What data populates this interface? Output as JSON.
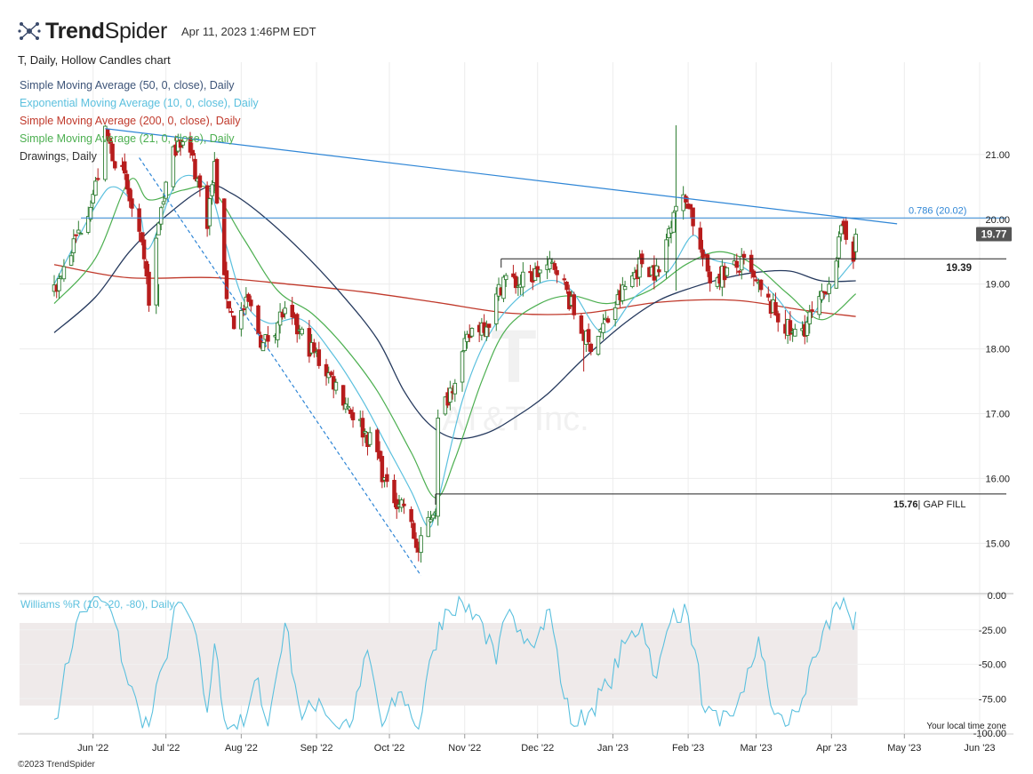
{
  "header": {
    "brand_prefix": "Trend",
    "brand_suffix": "Spider",
    "timestamp": "Apr 11, 2023 1:46PM EDT",
    "subtitle": "T, Daily, Hollow Candles chart"
  },
  "legend": [
    {
      "label": "Simple Moving Average (50, 0, close), Daily",
      "color": "#3d5478"
    },
    {
      "label": "Exponential Moving Average (10, 0, close), Daily",
      "color": "#5bc0de"
    },
    {
      "label": "Simple Moving Average (200, 0, close), Daily",
      "color": "#c0392b"
    },
    {
      "label": "Simple Moving Average (21, 0, close), Daily",
      "color": "#4caf50"
    },
    {
      "label": "Drawings, Daily",
      "color": "#333333"
    }
  ],
  "watermark": {
    "symbol": "T",
    "name": "AT&T Inc."
  },
  "footer": {
    "copyright": "©2023 TrendSpider",
    "timezone": "Your local time zone"
  },
  "chart_data": {
    "type": "candlestick",
    "ticker": "T",
    "interval": "Daily",
    "start": "2022-05-16",
    "end": "2023-04-11",
    "x_tick_labels": [
      "Jun '22",
      "Jul '22",
      "Aug '22",
      "Sep '22",
      "Oct '22",
      "Nov '22",
      "Dec '22",
      "Jan '23",
      "Feb '23",
      "Mar '23",
      "Apr '23",
      "May '23",
      "Jun '23"
    ],
    "y_tick_labels": [
      "15.00",
      "16.00",
      "17.00",
      "18.00",
      "19.00",
      "20.00",
      "21.00"
    ],
    "ylim": [
      14.25,
      22.15
    ],
    "last_price": {
      "value": 19.77,
      "label": "19.77"
    },
    "price_path": [
      [
        "2022-05-16",
        18.9
      ],
      [
        "2022-05-25",
        19.7
      ],
      [
        "2022-06-02",
        20.5
      ],
      [
        "2022-06-06",
        21.3
      ],
      [
        "2022-06-14",
        20.6
      ],
      [
        "2022-06-21",
        19.5
      ],
      [
        "2022-06-24",
        18.8
      ],
      [
        "2022-06-29",
        20.2
      ],
      [
        "2022-07-06",
        21.3
      ],
      [
        "2022-07-12",
        20.9
      ],
      [
        "2022-07-18",
        20.0
      ],
      [
        "2022-07-21",
        20.8
      ],
      [
        "2022-07-25",
        19.0
      ],
      [
        "2022-07-29",
        18.4
      ],
      [
        "2022-08-04",
        18.7
      ],
      [
        "2022-08-10",
        18.05
      ],
      [
        "2022-08-18",
        18.55
      ],
      [
        "2022-08-26",
        18.2
      ],
      [
        "2022-09-08",
        17.5
      ],
      [
        "2022-09-16",
        17.0
      ],
      [
        "2022-09-26",
        16.4
      ],
      [
        "2022-09-30",
        15.8
      ],
      [
        "2022-10-07",
        15.6
      ],
      [
        "2022-10-13",
        14.85
      ],
      [
        "2022-10-17",
        15.35
      ],
      [
        "2022-10-20",
        15.6
      ],
      [
        "2022-10-21",
        16.85
      ],
      [
        "2022-10-28",
        17.6
      ],
      [
        "2022-11-04",
        18.3
      ],
      [
        "2022-11-11",
        18.45
      ],
      [
        "2022-11-17",
        19.1
      ],
      [
        "2022-11-23",
        19.0
      ],
      [
        "2022-12-02",
        19.2
      ],
      [
        "2022-12-09",
        19.3
      ],
      [
        "2022-12-16",
        18.55
      ],
      [
        "2022-12-22",
        18.05
      ],
      [
        "2022-12-30",
        18.45
      ],
      [
        "2023-01-06",
        18.95
      ],
      [
        "2023-01-13",
        19.35
      ],
      [
        "2023-01-20",
        19.15
      ],
      [
        "2023-01-26",
        20.2
      ],
      [
        "2023-02-01",
        20.3
      ],
      [
        "2023-02-06",
        19.5
      ],
      [
        "2023-02-10",
        19.1
      ],
      [
        "2023-02-17",
        19.2
      ],
      [
        "2023-02-24",
        19.3
      ],
      [
        "2023-03-03",
        18.85
      ],
      [
        "2023-03-10",
        18.5
      ],
      [
        "2023-03-16",
        18.2
      ],
      [
        "2023-03-21",
        18.35
      ],
      [
        "2023-03-28",
        18.75
      ],
      [
        "2023-04-03",
        19.45
      ],
      [
        "2023-04-06",
        19.9
      ],
      [
        "2023-04-10",
        19.5
      ],
      [
        "2023-04-11",
        19.77
      ]
    ],
    "wick_spikes": [
      {
        "date": "2023-01-27",
        "high": 21.45,
        "low": 18.9
      },
      {
        "date": "2022-06-28",
        "high": 19.0,
        "low": 18.65
      },
      {
        "date": "2022-12-20",
        "high": 18.3,
        "low": 17.65
      },
      {
        "date": "2023-03-13",
        "high": 18.6,
        "low": 18.15
      }
    ],
    "sma50": [
      [
        "2022-05-16",
        18.25
      ],
      [
        "2022-06-02",
        18.8
      ],
      [
        "2022-06-16",
        19.5
      ],
      [
        "2022-07-01",
        20.05
      ],
      [
        "2022-07-18",
        20.5
      ],
      [
        "2022-07-28",
        20.4
      ],
      [
        "2022-08-10",
        20.05
      ],
      [
        "2022-08-26",
        19.5
      ],
      [
        "2022-09-10",
        18.9
      ],
      [
        "2022-09-26",
        18.15
      ],
      [
        "2022-10-07",
        17.35
      ],
      [
        "2022-10-17",
        16.85
      ],
      [
        "2022-10-28",
        16.62
      ],
      [
        "2022-11-10",
        16.7
      ],
      [
        "2022-11-22",
        16.95
      ],
      [
        "2022-12-05",
        17.3
      ],
      [
        "2022-12-20",
        17.85
      ],
      [
        "2023-01-06",
        18.4
      ],
      [
        "2023-01-20",
        18.75
      ],
      [
        "2023-02-03",
        18.95
      ],
      [
        "2023-02-17",
        19.1
      ],
      [
        "2023-03-01",
        19.18
      ],
      [
        "2023-03-15",
        19.2
      ],
      [
        "2023-03-28",
        19.05
      ],
      [
        "2023-04-11",
        19.05
      ]
    ],
    "ema10": [
      [
        "2022-05-16",
        19.0
      ],
      [
        "2022-06-02",
        20.2
      ],
      [
        "2022-06-10",
        20.5
      ],
      [
        "2022-06-20",
        20.1
      ],
      [
        "2022-06-24",
        19.55
      ],
      [
        "2022-07-06",
        20.6
      ],
      [
        "2022-07-18",
        20.5
      ],
      [
        "2022-07-25",
        19.7
      ],
      [
        "2022-08-02",
        18.75
      ],
      [
        "2022-08-12",
        18.4
      ],
      [
        "2022-08-26",
        18.45
      ],
      [
        "2022-09-08",
        17.9
      ],
      [
        "2022-09-20",
        17.2
      ],
      [
        "2022-09-30",
        16.5
      ],
      [
        "2022-10-10",
        15.8
      ],
      [
        "2022-10-17",
        15.25
      ],
      [
        "2022-10-21",
        15.65
      ],
      [
        "2022-10-31",
        17.2
      ],
      [
        "2022-11-10",
        18.15
      ],
      [
        "2022-11-22",
        18.75
      ],
      [
        "2022-12-05",
        19.05
      ],
      [
        "2022-12-15",
        18.9
      ],
      [
        "2022-12-28",
        18.25
      ],
      [
        "2023-01-10",
        18.8
      ],
      [
        "2023-01-24",
        19.2
      ],
      [
        "2023-02-03",
        19.75
      ],
      [
        "2023-02-10",
        19.4
      ],
      [
        "2023-02-24",
        19.25
      ],
      [
        "2023-03-08",
        18.85
      ],
      [
        "2023-03-20",
        18.4
      ],
      [
        "2023-03-31",
        18.9
      ],
      [
        "2023-04-11",
        19.4
      ]
    ],
    "sma200": [
      [
        "2022-05-16",
        19.3
      ],
      [
        "2022-06-15",
        19.1
      ],
      [
        "2022-07-20",
        19.1
      ],
      [
        "2022-08-20",
        19.0
      ],
      [
        "2022-09-20",
        18.88
      ],
      [
        "2022-10-20",
        18.72
      ],
      [
        "2022-11-20",
        18.55
      ],
      [
        "2022-12-20",
        18.55
      ],
      [
        "2023-01-20",
        18.72
      ],
      [
        "2023-02-20",
        18.75
      ],
      [
        "2023-03-20",
        18.6
      ],
      [
        "2023-04-11",
        18.5
      ]
    ],
    "sma21": [
      [
        "2022-05-16",
        18.7
      ],
      [
        "2022-06-02",
        19.4
      ],
      [
        "2022-06-16",
        20.6
      ],
      [
        "2022-06-24",
        20.3
      ],
      [
        "2022-07-08",
        20.45
      ],
      [
        "2022-07-20",
        20.45
      ],
      [
        "2022-08-02",
        19.7
      ],
      [
        "2022-08-16",
        18.9
      ],
      [
        "2022-08-30",
        18.55
      ],
      [
        "2022-09-12",
        18.05
      ],
      [
        "2022-09-26",
        17.35
      ],
      [
        "2022-10-10",
        16.4
      ],
      [
        "2022-10-20",
        15.7
      ],
      [
        "2022-10-28",
        16.3
      ],
      [
        "2022-11-08",
        17.5
      ],
      [
        "2022-11-18",
        18.3
      ],
      [
        "2022-12-02",
        18.7
      ],
      [
        "2022-12-15",
        18.82
      ],
      [
        "2022-12-30",
        18.7
      ],
      [
        "2023-01-16",
        18.9
      ],
      [
        "2023-01-31",
        19.3
      ],
      [
        "2023-02-14",
        19.5
      ],
      [
        "2023-02-28",
        19.3
      ],
      [
        "2023-03-14",
        18.85
      ],
      [
        "2023-03-28",
        18.45
      ],
      [
        "2023-04-11",
        18.85
      ]
    ],
    "drawings": {
      "trendline_top": {
        "from": [
          "2022-06-06",
          21.4
        ],
        "to": [
          "2023-04-28",
          19.93
        ]
      },
      "trendline_dashed": {
        "from": [
          "2022-06-20",
          20.95
        ],
        "to": [
          "2022-10-14",
          14.5
        ]
      },
      "fib_line": {
        "y": 20.02,
        "label": "0.786 (20.02)",
        "from": "2022-05-27"
      },
      "resistance_line": {
        "y": 19.39,
        "label": "19.39",
        "from": "2022-11-16"
      },
      "gap_fill_line": {
        "y": 15.76,
        "value_label": "15.76",
        "text_label": "| GAP FILL",
        "from": "2022-10-20"
      }
    },
    "williams_r": {
      "label": "Williams %R (10, -20, -80), Daily",
      "params": [
        10,
        -20,
        -80
      ],
      "ylim": [
        -100,
        0
      ],
      "y_tick_labels": [
        "0.00",
        "-25.00",
        "-50.00",
        "-75.00",
        "-100.00"
      ],
      "band": [
        -80,
        -20
      ],
      "values": [
        [
          "2022-05-16",
          -90
        ],
        [
          "2022-05-19",
          -70
        ],
        [
          "2022-05-25",
          -20
        ],
        [
          "2022-05-31",
          -5
        ],
        [
          "2022-06-06",
          -5
        ],
        [
          "2022-06-10",
          -20
        ],
        [
          "2022-06-14",
          -55
        ],
        [
          "2022-06-20",
          -85
        ],
        [
          "2022-06-24",
          -95
        ],
        [
          "2022-06-30",
          -50
        ],
        [
          "2022-07-06",
          -5
        ],
        [
          "2022-07-12",
          -20
        ],
        [
          "2022-07-18",
          -85
        ],
        [
          "2022-07-21",
          -35
        ],
        [
          "2022-07-25",
          -90
        ],
        [
          "2022-08-02",
          -95
        ],
        [
          "2022-08-08",
          -60
        ],
        [
          "2022-08-12",
          -95
        ],
        [
          "2022-08-19",
          -20
        ],
        [
          "2022-08-26",
          -90
        ],
        [
          "2022-09-02",
          -75
        ],
        [
          "2022-09-09",
          -95
        ],
        [
          "2022-09-16",
          -90
        ],
        [
          "2022-09-22",
          -40
        ],
        [
          "2022-09-28",
          -95
        ],
        [
          "2022-10-06",
          -70
        ],
        [
          "2022-10-13",
          -97
        ],
        [
          "2022-10-19",
          -40
        ],
        [
          "2022-10-24",
          -10
        ],
        [
          "2022-10-31",
          -5
        ],
        [
          "2022-11-07",
          -15
        ],
        [
          "2022-11-14",
          -50
        ],
        [
          "2022-11-18",
          -15
        ],
        [
          "2022-11-24",
          -25
        ],
        [
          "2022-12-01",
          -30
        ],
        [
          "2022-12-06",
          -10
        ],
        [
          "2022-12-12",
          -75
        ],
        [
          "2022-12-16",
          -95
        ],
        [
          "2022-12-22",
          -85
        ],
        [
          "2022-12-30",
          -65
        ],
        [
          "2023-01-06",
          -35
        ],
        [
          "2023-01-13",
          -20
        ],
        [
          "2023-01-19",
          -60
        ],
        [
          "2023-01-26",
          -10
        ],
        [
          "2023-02-01",
          -15
        ],
        [
          "2023-02-08",
          -85
        ],
        [
          "2023-02-14",
          -95
        ],
        [
          "2023-02-21",
          -80
        ],
        [
          "2023-02-24",
          -70
        ],
        [
          "2023-03-02",
          -30
        ],
        [
          "2023-03-07",
          -80
        ],
        [
          "2023-03-13",
          -95
        ],
        [
          "2023-03-20",
          -75
        ],
        [
          "2023-03-27",
          -40
        ],
        [
          "2023-04-03",
          -5
        ],
        [
          "2023-04-06",
          -2
        ],
        [
          "2023-04-10",
          -25
        ],
        [
          "2023-04-11",
          -12
        ]
      ]
    }
  }
}
